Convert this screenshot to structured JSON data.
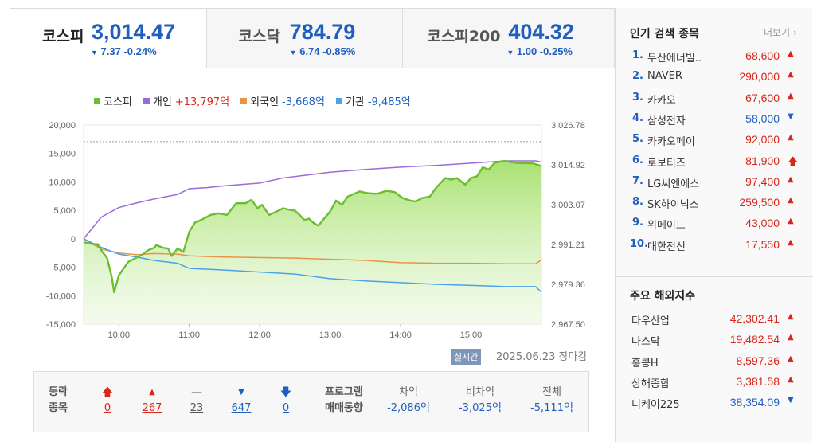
{
  "tabs": [
    {
      "name": "코스피",
      "value": "3,014.47",
      "change": "7.37 -0.24%",
      "active": true
    },
    {
      "name": "코스닥",
      "value": "784.79",
      "change": "6.74 -0.85%",
      "active": false
    },
    {
      "name": "코스피200",
      "value": "404.32",
      "change": "1.00 -0.25%",
      "active": false
    }
  ],
  "legend": [
    {
      "name": "코스피",
      "value": "",
      "color": "#6bbf2f"
    },
    {
      "name": "개인",
      "value": "+13,797억",
      "color": "#9b6bd6"
    },
    {
      "name": "외국인",
      "value": "-3,668억",
      "color": "#e89447"
    },
    {
      "name": "기관",
      "value": "-9,485억",
      "color": "#4aa3e8"
    }
  ],
  "chart_data": {
    "type": "line",
    "x_ticks": [
      "10:00",
      "11:00",
      "12:00",
      "13:00",
      "14:00",
      "15:00"
    ],
    "y_left_ticks": [
      "20,000",
      "15,000",
      "10,000",
      "5,000",
      "0",
      "-5,000",
      "-10,000",
      "-15,000"
    ],
    "y_right_ticks": [
      "3,026.78",
      "3,014.92",
      "3,003.07",
      "2,991.21",
      "2,979.36",
      "2,967.50"
    ],
    "y_left_range": [
      -15000,
      20000
    ],
    "y_right_range": [
      2967.5,
      3026.78
    ],
    "x_range_minutes": [
      0,
      390
    ],
    "reference_line_right": 3021.84,
    "series": [
      {
        "name": "개인",
        "axis": "left",
        "color": "#9b6bd6",
        "points": [
          [
            0,
            0
          ],
          [
            15,
            3800
          ],
          [
            30,
            5500
          ],
          [
            45,
            6300
          ],
          [
            60,
            7000
          ],
          [
            80,
            7800
          ],
          [
            90,
            8800
          ],
          [
            105,
            9000
          ],
          [
            120,
            9300
          ],
          [
            150,
            9800
          ],
          [
            170,
            10700
          ],
          [
            190,
            11200
          ],
          [
            210,
            11700
          ],
          [
            240,
            12200
          ],
          [
            270,
            12600
          ],
          [
            300,
            12900
          ],
          [
            330,
            13300
          ],
          [
            360,
            13700
          ],
          [
            385,
            13700
          ],
          [
            390,
            13500
          ]
        ]
      },
      {
        "name": "외국인",
        "axis": "left",
        "color": "#e89447",
        "points": [
          [
            0,
            0
          ],
          [
            15,
            -1800
          ],
          [
            30,
            -2500
          ],
          [
            45,
            -2800
          ],
          [
            60,
            -2600
          ],
          [
            80,
            -2700
          ],
          [
            90,
            -3000
          ],
          [
            120,
            -3200
          ],
          [
            180,
            -3400
          ],
          [
            240,
            -3800
          ],
          [
            270,
            -4200
          ],
          [
            300,
            -4300
          ],
          [
            330,
            -4300
          ],
          [
            360,
            -4400
          ],
          [
            385,
            -4400
          ],
          [
            390,
            -3700
          ]
        ]
      },
      {
        "name": "기관",
        "axis": "left",
        "color": "#4aa3e8",
        "points": [
          [
            0,
            0
          ],
          [
            15,
            -1500
          ],
          [
            30,
            -2700
          ],
          [
            45,
            -3200
          ],
          [
            60,
            -3800
          ],
          [
            80,
            -4300
          ],
          [
            90,
            -5200
          ],
          [
            120,
            -5500
          ],
          [
            180,
            -6200
          ],
          [
            210,
            -7000
          ],
          [
            240,
            -7400
          ],
          [
            270,
            -7700
          ],
          [
            300,
            -8000
          ],
          [
            330,
            -8200
          ],
          [
            360,
            -8400
          ],
          [
            385,
            -8400
          ],
          [
            390,
            -9400
          ]
        ]
      },
      {
        "name": "코스피",
        "axis": "right",
        "color": "#6bbf2f",
        "points": [
          [
            0,
            2991.9
          ],
          [
            8,
            2991.3
          ],
          [
            12,
            2991.3
          ],
          [
            16,
            2989.0
          ],
          [
            20,
            2987.2
          ],
          [
            24,
            2981.5
          ],
          [
            26,
            2977.0
          ],
          [
            30,
            2982.0
          ],
          [
            38,
            2986.0
          ],
          [
            50,
            2988.2
          ],
          [
            55,
            2989.5
          ],
          [
            60,
            2990.2
          ],
          [
            62,
            2991.0
          ],
          [
            68,
            2990.2
          ],
          [
            72,
            2990.0
          ],
          [
            75,
            2987.8
          ],
          [
            80,
            2990.0
          ],
          [
            85,
            2989.0
          ],
          [
            90,
            2995.0
          ],
          [
            95,
            2997.8
          ],
          [
            100,
            2998.5
          ],
          [
            108,
            3000.0
          ],
          [
            115,
            3000.5
          ],
          [
            122,
            3000.0
          ],
          [
            130,
            3003.5
          ],
          [
            138,
            3003.5
          ],
          [
            143,
            3004.5
          ],
          [
            148,
            3002.0
          ],
          [
            152,
            3003.0
          ],
          [
            158,
            3000.0
          ],
          [
            166,
            3001.3
          ],
          [
            170,
            3002.0
          ],
          [
            176,
            3001.5
          ],
          [
            180,
            3001.3
          ],
          [
            184,
            3000.0
          ],
          [
            188,
            2998.5
          ],
          [
            192,
            2998.9
          ],
          [
            196,
            2997.6
          ],
          [
            200,
            2996.8
          ],
          [
            205,
            2999.0
          ],
          [
            210,
            3001.0
          ],
          [
            215,
            3004.3
          ],
          [
            220,
            3003.0
          ],
          [
            225,
            3005.5
          ],
          [
            235,
            3007.0
          ],
          [
            242,
            3006.5
          ],
          [
            250,
            3006.3
          ],
          [
            258,
            3007.2
          ],
          [
            265,
            3006.8
          ],
          [
            272,
            3005.0
          ],
          [
            278,
            3004.3
          ],
          [
            283,
            3004.0
          ],
          [
            288,
            3005.0
          ],
          [
            295,
            3005.5
          ],
          [
            300,
            3008.0
          ],
          [
            308,
            3011.0
          ],
          [
            313,
            3010.5
          ],
          [
            318,
            3011.0
          ],
          [
            325,
            3009.0
          ],
          [
            330,
            3011.0
          ],
          [
            335,
            3011.5
          ],
          [
            340,
            3014.2
          ],
          [
            345,
            3013.5
          ],
          [
            350,
            3015.5
          ],
          [
            358,
            3016.1
          ],
          [
            368,
            3015.5
          ],
          [
            382,
            3015.4
          ],
          [
            388,
            3014.8
          ],
          [
            390,
            3014.47
          ]
        ]
      }
    ]
  },
  "status": {
    "realtime": "실시간",
    "timestamp": "2025.06.23  장마감"
  },
  "breadth": {
    "label1": "등락",
    "label2": "종목",
    "items": [
      {
        "icon": "upper-limit-icon",
        "glyph": "🡅",
        "count": "0",
        "color": "#d9261b"
      },
      {
        "icon": "rise-icon",
        "glyph": "▲",
        "count": "267",
        "color": "#d9261b"
      },
      {
        "icon": "unchanged-icon",
        "glyph": "—",
        "count": "23",
        "color": "#555555"
      },
      {
        "icon": "fall-icon",
        "glyph": "▼",
        "count": "647",
        "color": "#1f5fbf"
      },
      {
        "icon": "lower-limit-icon",
        "glyph": "🡇",
        "count": "0",
        "color": "#1f5fbf"
      }
    ]
  },
  "program": {
    "label1": "프로그램",
    "label2": "매매동향",
    "cols": [
      {
        "header": "차익",
        "value": "-2,086억"
      },
      {
        "header": "비차익",
        "value": "-3,025억"
      },
      {
        "header": "전체",
        "value": "-5,111억"
      }
    ]
  },
  "popular": {
    "title": "인기 검색 종목",
    "more": "더보기",
    "items": [
      {
        "rank": "1.",
        "name": "두산에너빌..",
        "price": "68,600",
        "dir": "up"
      },
      {
        "rank": "2.",
        "name": "NAVER",
        "price": "290,000",
        "dir": "up"
      },
      {
        "rank": "3.",
        "name": "카카오",
        "price": "67,600",
        "dir": "up"
      },
      {
        "rank": "4.",
        "name": "삼성전자",
        "price": "58,000",
        "dir": "down"
      },
      {
        "rank": "5.",
        "name": "카카오페이",
        "price": "92,000",
        "dir": "up"
      },
      {
        "rank": "6.",
        "name": "로보티즈",
        "price": "81,900",
        "dir": "upper"
      },
      {
        "rank": "7.",
        "name": "LG씨엔에스",
        "price": "97,400",
        "dir": "up"
      },
      {
        "rank": "8.",
        "name": "SK하이닉스",
        "price": "259,500",
        "dir": "up"
      },
      {
        "rank": "9.",
        "name": "위메이드",
        "price": "43,000",
        "dir": "up"
      },
      {
        "rank": "10.",
        "name": "대한전선",
        "price": "17,550",
        "dir": "up"
      }
    ]
  },
  "world": {
    "title": "주요 해외지수",
    "items": [
      {
        "name": "다우산업",
        "value": "42,302.41",
        "dir": "up"
      },
      {
        "name": "나스닥",
        "value": "19,482.54",
        "dir": "up"
      },
      {
        "name": "홍콩H",
        "value": "8,597.36",
        "dir": "up"
      },
      {
        "name": "상해종합",
        "value": "3,381.58",
        "dir": "up"
      },
      {
        "name": "니케이225",
        "value": "38,354.09",
        "dir": "down"
      }
    ]
  }
}
